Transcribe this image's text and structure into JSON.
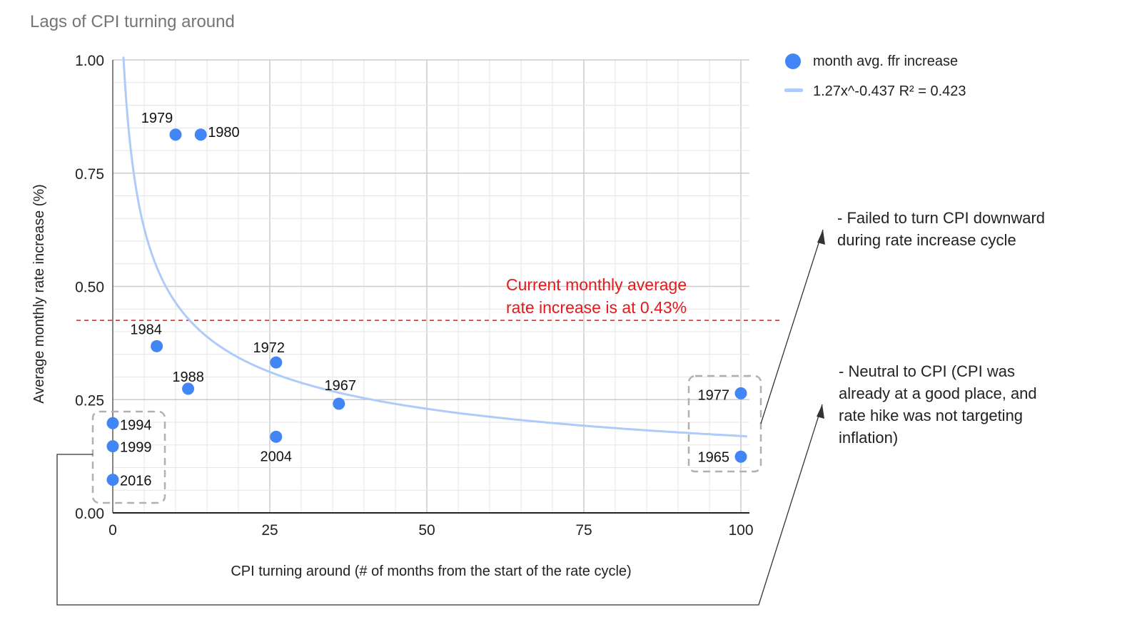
{
  "chart_data": {
    "type": "scatter",
    "title": "Lags of CPI turning around",
    "xlabel": "CPI turning around (# of months from the start of the rate cycle)",
    "ylabel": "Average monthly rate increase (%)",
    "xlim": [
      0,
      100
    ],
    "ylim": [
      0,
      1
    ],
    "x_ticks": [
      "0",
      "25",
      "50",
      "75",
      "100"
    ],
    "y_ticks": [
      "0.00",
      "0.25",
      "0.50",
      "0.75",
      "1.00"
    ],
    "grid": true,
    "legend_position": "right",
    "series": [
      {
        "name": "month avg. ffr increase",
        "color": "#4285f4",
        "points": [
          {
            "label": "1979",
            "x": 10,
            "y": 0.835
          },
          {
            "label": "1980",
            "x": 14,
            "y": 0.835
          },
          {
            "label": "1984",
            "x": 7,
            "y": 0.368
          },
          {
            "label": "1988",
            "x": 12,
            "y": 0.274
          },
          {
            "label": "1972",
            "x": 26,
            "y": 0.332
          },
          {
            "label": "2004",
            "x": 26,
            "y": 0.168
          },
          {
            "label": "1967",
            "x": 36,
            "y": 0.241
          },
          {
            "label": "1994",
            "x": 0,
            "y": 0.198
          },
          {
            "label": "1999",
            "x": 0,
            "y": 0.147
          },
          {
            "label": "2016",
            "x": 0,
            "y": 0.073
          },
          {
            "label": "1977",
            "x": 100,
            "y": 0.264
          },
          {
            "label": "1965",
            "x": 100,
            "y": 0.124
          }
        ]
      }
    ],
    "trendline": {
      "name": "1.27x^-0.437 R² = 0.423",
      "a": 1.27,
      "b": -0.437,
      "x_range": [
        1.7,
        101
      ],
      "color": "#aecbfa"
    },
    "reference_line": {
      "y": 0.425,
      "color": "#e5191b"
    },
    "annotations": {
      "current": [
        "Current monthly average",
        "rate increase is at 0.43%"
      ],
      "failed": [
        "- Failed to turn CPI downward",
        "during rate increase cycle"
      ],
      "neutral": [
        "- Neutral to CPI (CPI was",
        "already at a good place, and",
        "rate hike was not targeting",
        "inflation)"
      ]
    }
  }
}
